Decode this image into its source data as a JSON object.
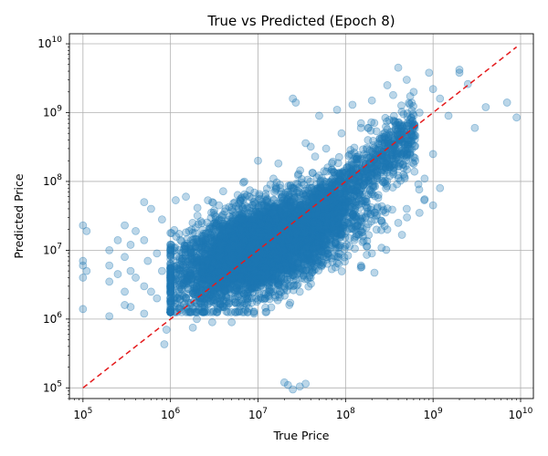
{
  "chart_data": {
    "type": "scatter",
    "title": "True vs Predicted (Epoch 8)",
    "xlabel": "True Price",
    "ylabel": "Predicted Price",
    "xscale": "log",
    "yscale": "log",
    "xlim": [
      70000,
      14000000000
    ],
    "ylim": [
      70000,
      14000000000
    ],
    "grid": true,
    "point_color": "#1f77b4",
    "reference_line": {
      "style": "dashed",
      "color": "#e41a1c",
      "from": [
        100000,
        100000
      ],
      "to": [
        9000000000,
        9000000000
      ]
    },
    "x_ticks": [
      {
        "value": 100000,
        "base": "10",
        "exp": "5"
      },
      {
        "value": 1000000,
        "base": "10",
        "exp": "6"
      },
      {
        "value": 10000000,
        "base": "10",
        "exp": "7"
      },
      {
        "value": 100000000,
        "base": "10",
        "exp": "8"
      },
      {
        "value": 1000000000,
        "base": "10",
        "exp": "9"
      },
      {
        "value": 10000000000,
        "base": "10",
        "exp": "10"
      }
    ],
    "y_ticks": [
      {
        "value": 100000,
        "base": "10",
        "exp": "5"
      },
      {
        "value": 1000000,
        "base": "10",
        "exp": "6"
      },
      {
        "value": 10000000,
        "base": "10",
        "exp": "7"
      },
      {
        "value": 100000000,
        "base": "10",
        "exp": "8"
      },
      {
        "value": 1000000000,
        "base": "10",
        "exp": "9"
      },
      {
        "value": 10000000000,
        "base": "10",
        "exp": "10"
      }
    ],
    "points": [
      [
        100000,
        23000000
      ],
      [
        110000,
        19000000
      ],
      [
        100000,
        7000000
      ],
      [
        100000,
        6000000
      ],
      [
        100000,
        4000000
      ],
      [
        100000,
        1400000
      ],
      [
        110000,
        5000000
      ],
      [
        200000,
        10000000
      ],
      [
        200000,
        6000000
      ],
      [
        200000,
        3500000
      ],
      [
        200000,
        1100000
      ],
      [
        250000,
        14000000
      ],
      [
        250000,
        4500000
      ],
      [
        300000,
        23000000
      ],
      [
        300000,
        8000000
      ],
      [
        300000,
        2500000
      ],
      [
        300000,
        1600000
      ],
      [
        350000,
        12000000
      ],
      [
        350000,
        5000000
      ],
      [
        350000,
        1500000
      ],
      [
        400000,
        19000000
      ],
      [
        400000,
        4000000
      ],
      [
        500000,
        50000000
      ],
      [
        500000,
        14000000
      ],
      [
        500000,
        3000000
      ],
      [
        500000,
        1200000
      ],
      [
        550000,
        7000000
      ],
      [
        600000,
        40000000
      ],
      [
        600000,
        2500000
      ],
      [
        700000,
        9000000
      ],
      [
        700000,
        2000000
      ],
      [
        800000,
        28000000
      ],
      [
        800000,
        5000000
      ],
      [
        850000,
        430000
      ],
      [
        900000,
        700000
      ],
      [
        1500000,
        2000000
      ],
      [
        2000000,
        1000000
      ],
      [
        3000000,
        900000
      ],
      [
        1800000,
        750000
      ],
      [
        2500000,
        1300000
      ],
      [
        1500000,
        60000000
      ],
      [
        3000000,
        50000000
      ],
      [
        4000000,
        72000000
      ],
      [
        6000000,
        40000000
      ],
      [
        8000000,
        60000000
      ],
      [
        10000000,
        200000000
      ],
      [
        15000000,
        110000000
      ],
      [
        18000000,
        80000000
      ],
      [
        25000000,
        1600000000
      ],
      [
        27000000,
        1400000000
      ],
      [
        35000000,
        360000000
      ],
      [
        40000000,
        320000000
      ],
      [
        50000000,
        900000000
      ],
      [
        60000000,
        300000000
      ],
      [
        70000000,
        150000000
      ],
      [
        80000000,
        1100000000
      ],
      [
        90000000,
        500000000
      ],
      [
        120000000,
        1300000000
      ],
      [
        150000000,
        700000000
      ],
      [
        180000000,
        600000000
      ],
      [
        200000000,
        1500000000
      ],
      [
        300000000,
        2500000000
      ],
      [
        350000000,
        1800000000
      ],
      [
        400000000,
        4500000000
      ],
      [
        500000000,
        3000000000
      ],
      [
        600000000,
        2000000000
      ],
      [
        700000000,
        1000000000
      ],
      [
        900000000,
        3800000000
      ],
      [
        1000000000,
        2200000000
      ],
      [
        1200000000,
        1600000000
      ],
      [
        1500000000,
        900000000
      ],
      [
        2000000000,
        4200000000
      ],
      [
        2500000000,
        2600000000
      ],
      [
        3000000000,
        600000000
      ],
      [
        4000000000,
        1200000000
      ],
      [
        7000000000,
        1400000000
      ],
      [
        9000000000,
        850000000
      ],
      [
        2000000000,
        3800000000
      ],
      [
        25000000,
        95000
      ],
      [
        20000000,
        120000
      ],
      [
        22000000,
        110000
      ],
      [
        30000000,
        105000
      ],
      [
        35000000,
        115000
      ],
      [
        60000000,
        8000000
      ],
      [
        80000000,
        6500000
      ],
      [
        150000000,
        6000000
      ],
      [
        200000000,
        9000000
      ],
      [
        300000000,
        20000000
      ],
      [
        400000000,
        25000000
      ],
      [
        500000000,
        40000000
      ],
      [
        700000000,
        35000000
      ],
      [
        800000000,
        55000000
      ],
      [
        1000000000,
        45000000
      ],
      [
        1200000000,
        80000000
      ],
      [
        800000000,
        110000000
      ],
      [
        600000000,
        180000000
      ],
      [
        1000000000,
        250000000
      ],
      [
        15000000,
        5000000
      ],
      [
        20000000,
        3000000
      ],
      [
        30000000,
        2500000
      ],
      [
        40000000,
        4000000
      ],
      [
        12000000,
        2000000
      ],
      [
        6000000,
        1300000
      ],
      [
        4000000,
        1500000
      ],
      [
        5000000,
        900000
      ],
      [
        8000000,
        2000000
      ],
      [
        9000000,
        1200000
      ]
    ],
    "dense_cluster": {
      "log_x_mean": 7.05,
      "log_y_mean": 7.05,
      "log_x_sd": 0.5,
      "log_y_sd": 0.42,
      "count": 5500
    }
  }
}
